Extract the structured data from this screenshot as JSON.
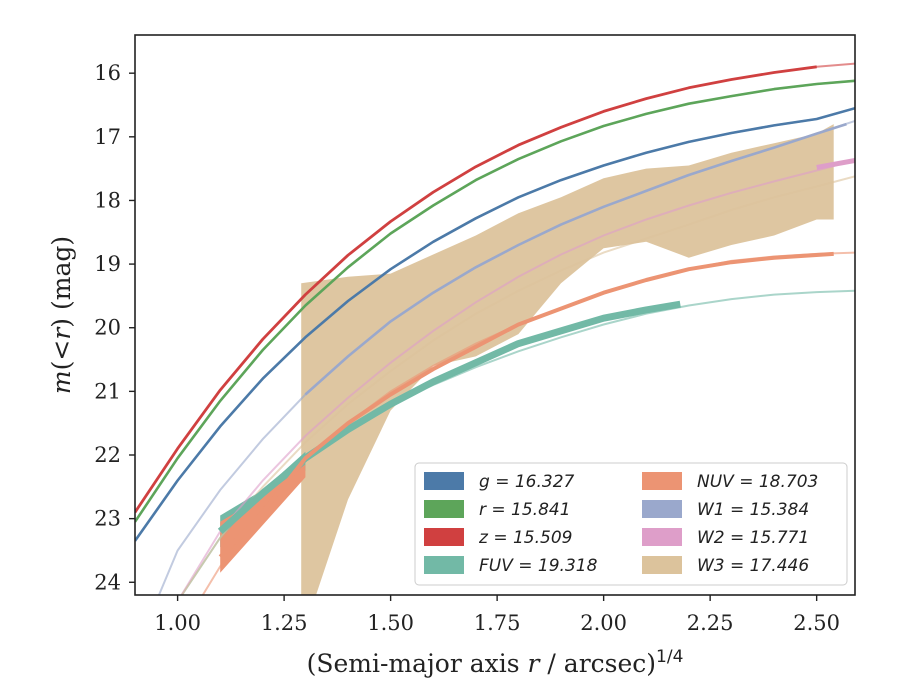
{
  "chart_data": {
    "type": "line",
    "xlabel": "(Semi-major axis r / arcsec)^1/4",
    "ylabel": "m(<r) (mag)",
    "xlim": [
      0.9,
      2.59
    ],
    "ylim": [
      24.2,
      15.4
    ],
    "y_inverted": true,
    "xticks": [
      "1.00",
      "1.25",
      "1.50",
      "1.75",
      "2.00",
      "2.25",
      "2.50"
    ],
    "xtick_values": [
      1.0,
      1.25,
      1.5,
      1.75,
      2.0,
      2.25,
      2.5
    ],
    "yticks": [
      "16",
      "17",
      "18",
      "19",
      "20",
      "21",
      "22",
      "23",
      "24"
    ],
    "ytick_values": [
      16,
      17,
      18,
      19,
      20,
      21,
      22,
      23,
      24
    ],
    "grid": false,
    "legend_position": "lower-right",
    "series": [
      {
        "name": "g = 16.327",
        "key": "g",
        "color": "#4c7aa8",
        "model": [
          [
            0.9,
            23.35
          ],
          [
            1.0,
            22.4
          ],
          [
            1.1,
            21.55
          ],
          [
            1.2,
            20.8
          ],
          [
            1.3,
            20.15
          ],
          [
            1.4,
            19.58
          ],
          [
            1.5,
            19.08
          ],
          [
            1.6,
            18.65
          ],
          [
            1.7,
            18.28
          ],
          [
            1.8,
            17.95
          ],
          [
            1.9,
            17.68
          ],
          [
            2.0,
            17.45
          ],
          [
            2.1,
            17.25
          ],
          [
            2.2,
            17.08
          ],
          [
            2.3,
            16.94
          ],
          [
            2.4,
            16.82
          ],
          [
            2.5,
            16.72
          ],
          [
            2.59,
            16.55
          ]
        ],
        "measured": [
          [
            0.9,
            23.35
          ],
          [
            1.0,
            22.4
          ],
          [
            1.1,
            21.55
          ],
          [
            1.2,
            20.8
          ],
          [
            1.3,
            20.15
          ],
          [
            1.4,
            19.58
          ],
          [
            1.5,
            19.08
          ],
          [
            1.6,
            18.65
          ],
          [
            1.7,
            18.28
          ],
          [
            1.8,
            17.95
          ],
          [
            1.9,
            17.68
          ],
          [
            2.0,
            17.45
          ],
          [
            2.1,
            17.25
          ],
          [
            2.2,
            17.08
          ],
          [
            2.3,
            16.94
          ],
          [
            2.4,
            16.82
          ],
          [
            2.5,
            16.72
          ],
          [
            2.59,
            16.55
          ]
        ]
      },
      {
        "name": "r = 15.841",
        "key": "r",
        "color": "#5da55a",
        "model": [
          [
            0.9,
            23.05
          ],
          [
            1.0,
            22.05
          ],
          [
            1.1,
            21.15
          ],
          [
            1.2,
            20.35
          ],
          [
            1.3,
            19.65
          ],
          [
            1.4,
            19.05
          ],
          [
            1.5,
            18.52
          ],
          [
            1.6,
            18.08
          ],
          [
            1.7,
            17.68
          ],
          [
            1.8,
            17.35
          ],
          [
            1.9,
            17.07
          ],
          [
            2.0,
            16.83
          ],
          [
            2.1,
            16.64
          ],
          [
            2.2,
            16.48
          ],
          [
            2.3,
            16.36
          ],
          [
            2.4,
            16.25
          ],
          [
            2.5,
            16.17
          ],
          [
            2.59,
            16.12
          ]
        ],
        "measured": [
          [
            0.9,
            23.05
          ],
          [
            1.0,
            22.05
          ],
          [
            1.1,
            21.15
          ],
          [
            1.2,
            20.35
          ],
          [
            1.3,
            19.65
          ],
          [
            1.4,
            19.05
          ],
          [
            1.5,
            18.52
          ],
          [
            1.6,
            18.08
          ],
          [
            1.7,
            17.68
          ],
          [
            1.8,
            17.35
          ],
          [
            1.9,
            17.07
          ],
          [
            2.0,
            16.83
          ],
          [
            2.1,
            16.64
          ],
          [
            2.2,
            16.48
          ],
          [
            2.3,
            16.36
          ],
          [
            2.4,
            16.25
          ],
          [
            2.5,
            16.17
          ],
          [
            2.59,
            16.12
          ]
        ]
      },
      {
        "name": "z = 15.509",
        "key": "z",
        "color": "#d04040",
        "model": [
          [
            0.9,
            22.9
          ],
          [
            1.0,
            21.9
          ],
          [
            1.1,
            20.98
          ],
          [
            1.2,
            20.18
          ],
          [
            1.3,
            19.48
          ],
          [
            1.4,
            18.86
          ],
          [
            1.5,
            18.33
          ],
          [
            1.6,
            17.87
          ],
          [
            1.7,
            17.47
          ],
          [
            1.8,
            17.13
          ],
          [
            1.9,
            16.85
          ],
          [
            2.0,
            16.6
          ],
          [
            2.1,
            16.4
          ],
          [
            2.2,
            16.23
          ],
          [
            2.3,
            16.1
          ],
          [
            2.4,
            15.99
          ],
          [
            2.5,
            15.9
          ],
          [
            2.59,
            15.85
          ]
        ],
        "measured": [
          [
            0.9,
            22.9
          ],
          [
            1.0,
            21.9
          ],
          [
            1.1,
            20.98
          ],
          [
            1.2,
            20.18
          ],
          [
            1.3,
            19.48
          ],
          [
            1.4,
            18.86
          ],
          [
            1.5,
            18.33
          ],
          [
            1.6,
            17.87
          ],
          [
            1.7,
            17.47
          ],
          [
            1.8,
            17.13
          ],
          [
            1.9,
            16.85
          ],
          [
            2.0,
            16.6
          ],
          [
            2.1,
            16.4
          ],
          [
            2.2,
            16.23
          ],
          [
            2.3,
            16.1
          ],
          [
            2.4,
            15.99
          ],
          [
            2.5,
            15.9
          ]
        ]
      },
      {
        "name": "FUV = 19.318",
        "key": "FUV",
        "color": "#72b9a6",
        "model": [
          [
            1.0,
            24.3
          ],
          [
            1.1,
            23.3
          ],
          [
            1.2,
            22.55
          ],
          [
            1.3,
            22.0
          ],
          [
            1.4,
            21.55
          ],
          [
            1.5,
            21.2
          ],
          [
            1.6,
            20.9
          ],
          [
            1.7,
            20.62
          ],
          [
            1.8,
            20.37
          ],
          [
            1.9,
            20.15
          ],
          [
            2.0,
            19.95
          ],
          [
            2.1,
            19.78
          ],
          [
            2.2,
            19.65
          ],
          [
            2.3,
            19.55
          ],
          [
            2.4,
            19.48
          ],
          [
            2.5,
            19.44
          ],
          [
            2.59,
            19.42
          ]
        ],
        "measured": [
          [
            1.1,
            23.2
          ],
          [
            1.2,
            22.6
          ],
          [
            1.3,
            22.05
          ],
          [
            1.4,
            21.6
          ],
          [
            1.5,
            21.2
          ],
          [
            1.6,
            20.85
          ],
          [
            1.7,
            20.55
          ],
          [
            1.8,
            20.25
          ],
          [
            1.9,
            20.05
          ],
          [
            2.0,
            19.85
          ],
          [
            2.1,
            19.72
          ],
          [
            2.18,
            19.63
          ]
        ]
      },
      {
        "name": "NUV = 18.703",
        "key": "NUV",
        "color": "#ec9473",
        "model": [
          [
            1.05,
            24.3
          ],
          [
            1.1,
            23.75
          ],
          [
            1.2,
            22.85
          ],
          [
            1.3,
            22.1
          ],
          [
            1.4,
            21.5
          ],
          [
            1.5,
            21.0
          ],
          [
            1.6,
            20.6
          ],
          [
            1.7,
            20.25
          ],
          [
            1.8,
            19.95
          ],
          [
            1.9,
            19.7
          ],
          [
            2.0,
            19.45
          ],
          [
            2.1,
            19.25
          ],
          [
            2.2,
            19.08
          ],
          [
            2.3,
            18.95
          ],
          [
            2.4,
            18.88
          ],
          [
            2.5,
            18.84
          ],
          [
            2.59,
            18.82
          ]
        ],
        "measured": [
          [
            1.1,
            23.6
          ],
          [
            1.2,
            22.9
          ],
          [
            1.3,
            22.05
          ],
          [
            1.4,
            21.5
          ],
          [
            1.5,
            21.05
          ],
          [
            1.6,
            20.65
          ],
          [
            1.7,
            20.3
          ],
          [
            1.8,
            19.95
          ],
          [
            1.9,
            19.7
          ],
          [
            2.0,
            19.45
          ],
          [
            2.1,
            19.25
          ],
          [
            2.2,
            19.08
          ],
          [
            2.3,
            18.97
          ],
          [
            2.4,
            18.9
          ],
          [
            2.54,
            18.84
          ]
        ]
      },
      {
        "name": "W1 = 15.384",
        "key": "W1",
        "color": "#9aa8cc",
        "model": [
          [
            0.95,
            24.3
          ],
          [
            1.0,
            23.5
          ],
          [
            1.1,
            22.55
          ],
          [
            1.2,
            21.75
          ],
          [
            1.3,
            21.05
          ],
          [
            1.4,
            20.45
          ],
          [
            1.5,
            19.9
          ],
          [
            1.6,
            19.45
          ],
          [
            1.7,
            19.05
          ],
          [
            1.8,
            18.7
          ],
          [
            1.9,
            18.38
          ],
          [
            2.0,
            18.1
          ],
          [
            2.1,
            17.85
          ],
          [
            2.2,
            17.6
          ],
          [
            2.3,
            17.38
          ],
          [
            2.4,
            17.17
          ],
          [
            2.5,
            16.95
          ],
          [
            2.59,
            16.75
          ]
        ],
        "measured": [
          [
            1.3,
            21.05
          ],
          [
            1.4,
            20.45
          ],
          [
            1.5,
            19.9
          ],
          [
            1.6,
            19.45
          ],
          [
            1.7,
            19.05
          ],
          [
            1.8,
            18.7
          ],
          [
            1.9,
            18.38
          ],
          [
            2.0,
            18.1
          ],
          [
            2.1,
            17.85
          ],
          [
            2.2,
            17.6
          ],
          [
            2.3,
            17.38
          ],
          [
            2.4,
            17.17
          ],
          [
            2.5,
            16.95
          ],
          [
            2.57,
            16.8
          ]
        ]
      },
      {
        "name": "W2 = 15.771",
        "key": "W2",
        "color": "#de9ec9",
        "model": [
          [
            1.0,
            24.3
          ],
          [
            1.1,
            23.2
          ],
          [
            1.2,
            22.4
          ],
          [
            1.3,
            21.7
          ],
          [
            1.4,
            21.1
          ],
          [
            1.5,
            20.55
          ],
          [
            1.6,
            20.05
          ],
          [
            1.7,
            19.6
          ],
          [
            1.8,
            19.2
          ],
          [
            1.9,
            18.85
          ],
          [
            2.0,
            18.55
          ],
          [
            2.1,
            18.3
          ],
          [
            2.2,
            18.08
          ],
          [
            2.3,
            17.88
          ],
          [
            2.4,
            17.7
          ],
          [
            2.5,
            17.53
          ],
          [
            2.59,
            17.37
          ]
        ],
        "measured": [
          [
            2.5,
            17.48
          ],
          [
            2.59,
            17.37
          ]
        ]
      },
      {
        "name": "W3 = 17.446",
        "key": "W3",
        "color": "#dcc39c",
        "model": [
          [
            1.0,
            24.3
          ],
          [
            1.1,
            23.3
          ],
          [
            1.2,
            22.5
          ],
          [
            1.3,
            21.8
          ],
          [
            1.4,
            21.2
          ],
          [
            1.5,
            20.68
          ],
          [
            1.6,
            20.2
          ],
          [
            1.7,
            19.78
          ],
          [
            1.8,
            19.42
          ],
          [
            1.9,
            19.1
          ],
          [
            2.0,
            18.82
          ],
          [
            2.1,
            18.6
          ],
          [
            2.2,
            18.38
          ],
          [
            2.3,
            18.15
          ],
          [
            2.4,
            17.95
          ],
          [
            2.5,
            17.78
          ],
          [
            2.59,
            17.62
          ]
        ],
        "band_upper": [
          [
            1.29,
            19.3
          ],
          [
            1.4,
            19.2
          ],
          [
            1.5,
            19.15
          ],
          [
            1.6,
            18.85
          ],
          [
            1.7,
            18.55
          ],
          [
            1.8,
            18.2
          ],
          [
            1.9,
            17.95
          ],
          [
            2.0,
            17.65
          ],
          [
            2.1,
            17.5
          ],
          [
            2.2,
            17.45
          ],
          [
            2.3,
            17.25
          ],
          [
            2.4,
            17.1
          ],
          [
            2.5,
            16.95
          ],
          [
            2.54,
            16.8
          ]
        ],
        "band_lower": [
          [
            1.29,
            24.3
          ],
          [
            1.32,
            24.3
          ],
          [
            1.4,
            22.7
          ],
          [
            1.5,
            21.3
          ],
          [
            1.6,
            20.6
          ],
          [
            1.7,
            20.45
          ],
          [
            1.8,
            20.1
          ],
          [
            1.9,
            19.3
          ],
          [
            2.0,
            18.75
          ],
          [
            2.1,
            18.65
          ],
          [
            2.2,
            18.9
          ],
          [
            2.3,
            18.7
          ],
          [
            2.4,
            18.55
          ],
          [
            2.5,
            18.3
          ],
          [
            2.54,
            18.3
          ]
        ]
      }
    ]
  }
}
